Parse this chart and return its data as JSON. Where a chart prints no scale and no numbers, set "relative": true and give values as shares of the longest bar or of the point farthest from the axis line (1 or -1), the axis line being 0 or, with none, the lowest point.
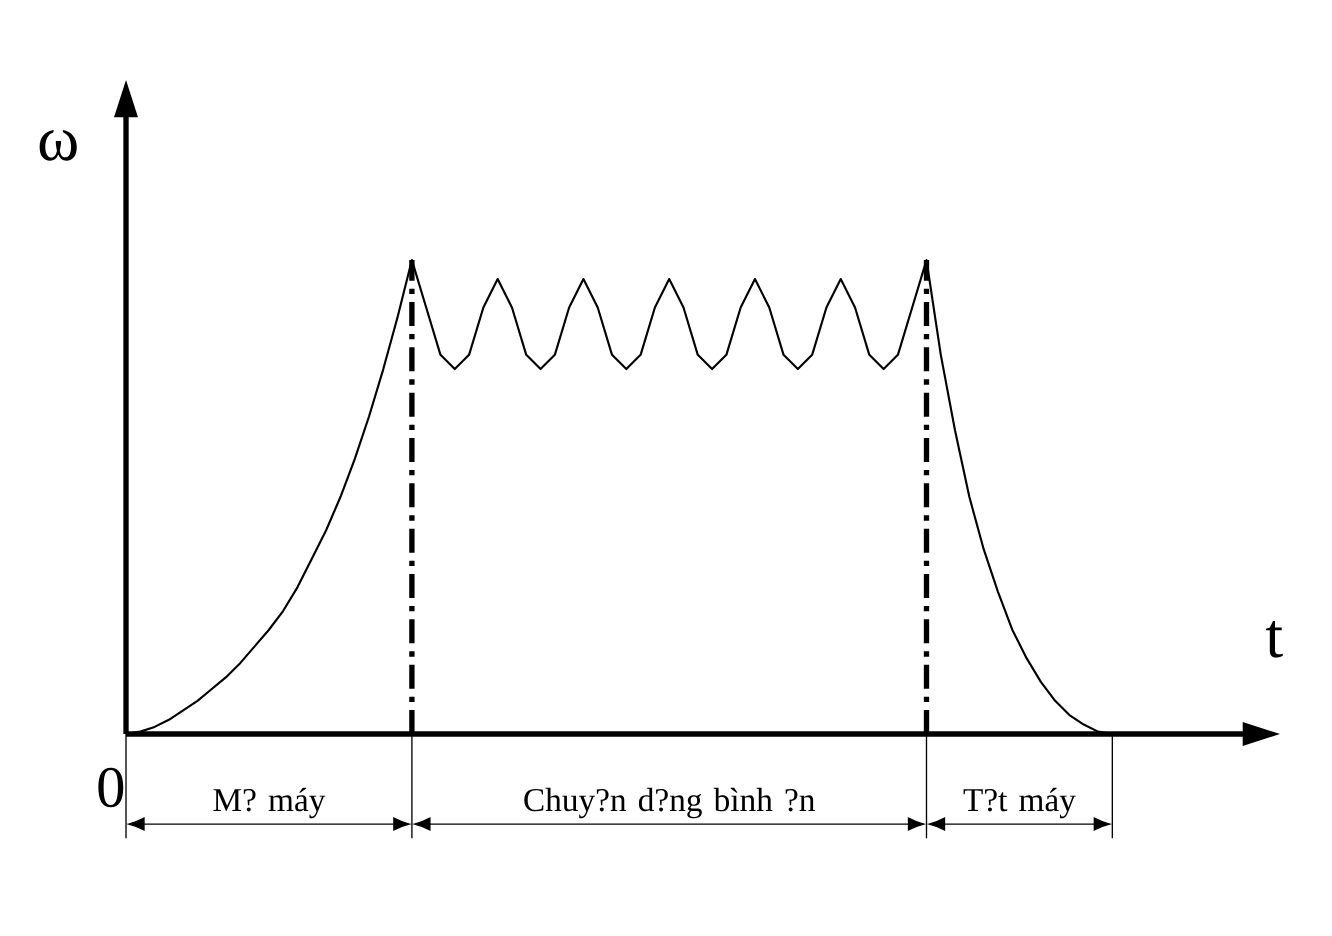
{
  "chart_data": {
    "type": "line",
    "relative": true,
    "xlabel": "t",
    "ylabel": "ω",
    "categories": [
      null,
      null,
      null,
      null,
      null,
      null,
      null,
      null,
      null,
      null,
      null,
      null,
      null,
      null,
      null,
      null,
      null,
      null,
      null,
      null,
      null,
      null,
      null,
      null,
      null,
      null,
      null,
      null,
      null,
      null,
      null,
      null,
      null,
      null,
      null,
      null,
      null,
      null,
      null,
      null,
      null,
      null,
      null,
      null,
      null,
      null,
      null,
      null,
      null,
      null,
      null,
      null,
      null,
      null,
      null,
      null,
      null,
      null,
      null,
      null,
      null,
      null,
      null,
      null,
      null,
      null,
      null,
      null,
      null,
      null
    ],
    "values": [
      0,
      0.005,
      0.015,
      0.03,
      0.05,
      0.07,
      0.095,
      0.12,
      0.15,
      0.185,
      0.22,
      0.26,
      0.31,
      0.37,
      0.43,
      0.5,
      0.58,
      0.67,
      0.77,
      0.88,
      1,
      0.9,
      0.8,
      0.77,
      0.8,
      0.9,
      0.96,
      0.9,
      0.8,
      0.77,
      0.8,
      0.9,
      0.96,
      0.9,
      0.8,
      0.77,
      0.8,
      0.9,
      0.96,
      0.9,
      0.8,
      0.77,
      0.8,
      0.9,
      0.96,
      0.9,
      0.8,
      0.77,
      0.8,
      0.9,
      0.96,
      0.9,
      0.8,
      0.77,
      0.8,
      0.9,
      1,
      0.8,
      0.64,
      0.5,
      0.39,
      0.3,
      0.22,
      0.16,
      0.11,
      0.07,
      0.04,
      0.02,
      0.005,
      0
    ],
    "color": "#000000",
    "annotations": [
      "0",
      "M? máy",
      "Chuy?n d?ng bình ?n",
      "T?t máy"
    ],
    "marker": "none",
    "line_style": "solid"
  }
}
